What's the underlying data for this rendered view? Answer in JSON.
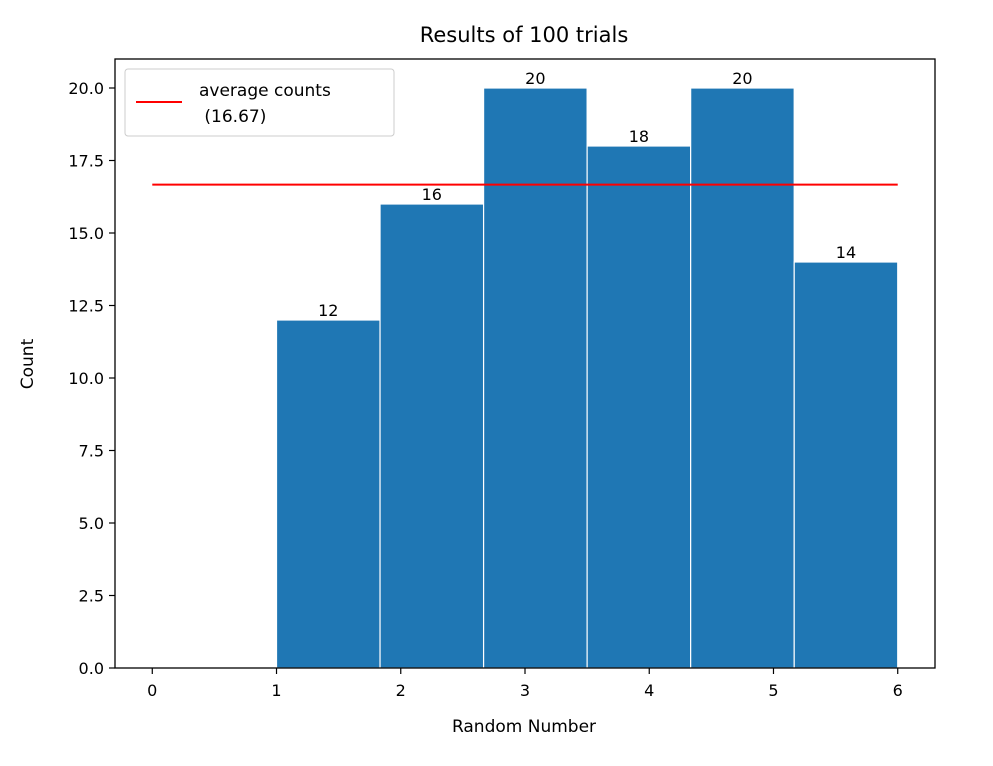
{
  "chart_data": {
    "type": "bar",
    "title": "Results of 100 trials",
    "xlabel": "Random Number",
    "ylabel": "Count",
    "xlim": [
      -0.3,
      6.3
    ],
    "ylim": [
      0,
      21
    ],
    "x_ticks": [
      "0",
      "1",
      "2",
      "3",
      "4",
      "5",
      "6"
    ],
    "y_ticks": [
      "0.0",
      "2.5",
      "5.0",
      "7.5",
      "10.0",
      "12.5",
      "15.0",
      "17.5",
      "20.0"
    ],
    "bins": [
      {
        "start": 1.0,
        "end": 1.8333,
        "value": 12,
        "label": "12"
      },
      {
        "start": 1.8333,
        "end": 2.6667,
        "value": 16,
        "label": "16"
      },
      {
        "start": 2.6667,
        "end": 3.5,
        "value": 20,
        "label": "20"
      },
      {
        "start": 3.5,
        "end": 4.3333,
        "value": 18,
        "label": "18"
      },
      {
        "start": 4.3333,
        "end": 5.1667,
        "value": 20,
        "label": "20"
      },
      {
        "start": 5.1667,
        "end": 6.0,
        "value": 14,
        "label": "14"
      }
    ],
    "average_line": {
      "value": 16.67,
      "x_start": 0,
      "x_end": 6,
      "color": "#ff0000"
    },
    "legend": {
      "placement": "top-left",
      "line1": "average counts",
      "line2": " (16.67)"
    },
    "bar_color": "#1f77b4",
    "bar_edge_color": "#ffffff",
    "grid": false
  }
}
